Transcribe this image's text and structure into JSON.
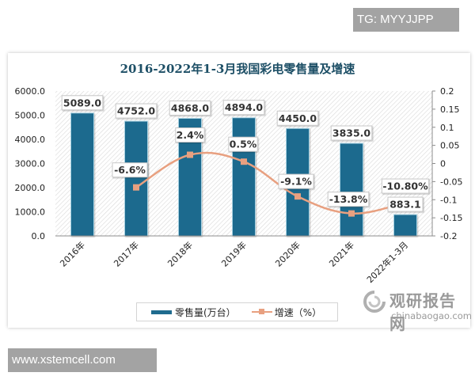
{
  "watermark_top": "TG: MYYJJPP",
  "watermark_bottom": "www.xstemcell.com",
  "watermark_logo": {
    "cn": "观研报告网",
    "en": "chinabaogao.com"
  },
  "chart_title": "2016-2022年1-3月我国彩电零售量及增速",
  "legend": {
    "bar_label": "零售量(万台）",
    "line_label": "增速（%）"
  },
  "colors": {
    "bar": "#1f6b8e",
    "line": "#e8a080",
    "title": "#1d4f66"
  },
  "chart_data": {
    "type": "bar+line",
    "title": "2016-2022年1-3月我国彩电零售量及增速",
    "categories": [
      "2016年",
      "2017年",
      "2018年",
      "2019年",
      "2020年",
      "2021年",
      "2022年1-3月"
    ],
    "series": [
      {
        "name": "零售量(万台）",
        "type": "bar",
        "axis": "left",
        "values": [
          5089.0,
          4752.0,
          4868.0,
          4894.0,
          4450.0,
          3835.0,
          883.1
        ],
        "labels": [
          "5089.0",
          "4752.0",
          "4868.0",
          "4894.0",
          "4450.0",
          "3835.0",
          "883.1"
        ]
      },
      {
        "name": "增速（%）",
        "type": "line",
        "axis": "right",
        "smooth": true,
        "values": [
          null,
          -0.066,
          0.024,
          0.005,
          -0.091,
          -0.138,
          -0.108
        ],
        "labels": [
          "",
          "-6.6%",
          "2.4%",
          "0.5%",
          "-9.1%",
          "-13.8%",
          "-10.80%"
        ]
      }
    ],
    "left_axis": {
      "ylim": [
        0,
        6000
      ],
      "ticks": [
        "0.0",
        "1000.0",
        "2000.0",
        "3000.0",
        "4000.0",
        "5000.0",
        "6000.0"
      ]
    },
    "right_axis": {
      "ylim": [
        -0.2,
        0.2
      ],
      "ticks": [
        "-0.2",
        "-0.15",
        "-0.1",
        "-0.05",
        "0",
        "0.05",
        "0.1",
        "0.15",
        "0.2"
      ]
    },
    "xlabel": "",
    "ylabel": "",
    "grid": false,
    "legend_position": "bottom"
  }
}
